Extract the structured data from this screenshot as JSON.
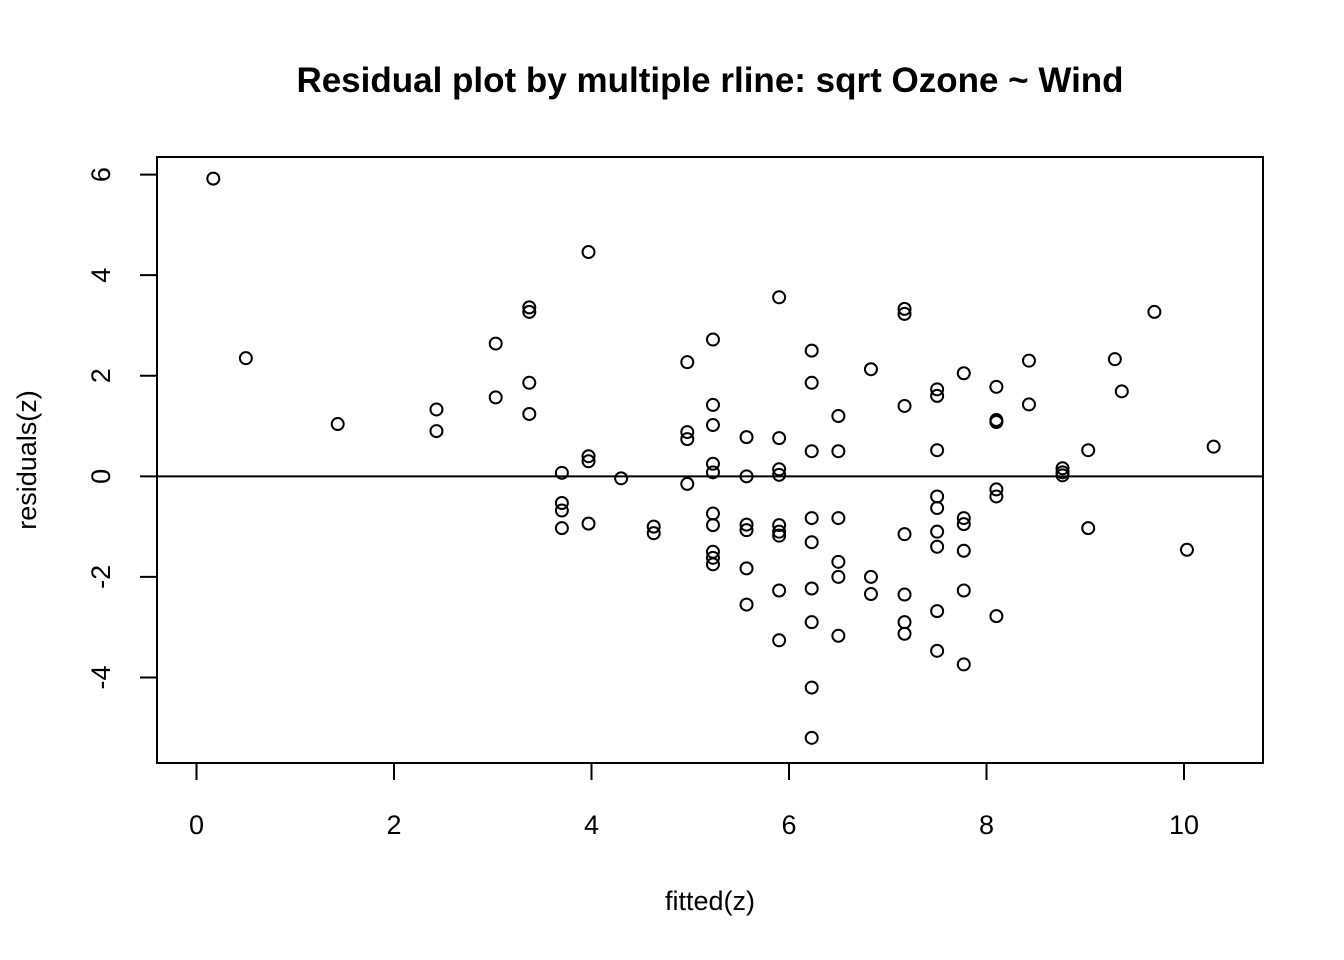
{
  "chart_data": {
    "type": "scatter",
    "title": "Residual plot by multiple rline: sqrt Ozone ~ Wind",
    "xlabel": "fitted(z)",
    "ylabel": "residuals(z)",
    "xlim": [
      -0.4,
      10.8
    ],
    "ylim": [
      -5.7,
      6.35
    ],
    "x_ticks": [
      0,
      2,
      4,
      6,
      8,
      10
    ],
    "x_tick_labels": [
      "0",
      "2",
      "4",
      "6",
      "8",
      "10"
    ],
    "y_ticks": [
      -4,
      -2,
      0,
      2,
      4,
      6
    ],
    "y_tick_labels": [
      "-4",
      "-2",
      "0",
      "2",
      "4",
      "6"
    ],
    "reference_line_y": 0,
    "grid": false,
    "marker": "open-circle",
    "points": [
      {
        "x": 0.17,
        "y": 5.92
      },
      {
        "x": 0.5,
        "y": 2.35
      },
      {
        "x": 1.43,
        "y": 1.04
      },
      {
        "x": 2.43,
        "y": 1.33
      },
      {
        "x": 2.43,
        "y": 0.9
      },
      {
        "x": 3.03,
        "y": 2.64
      },
      {
        "x": 3.03,
        "y": 1.57
      },
      {
        "x": 3.37,
        "y": 3.36
      },
      {
        "x": 3.37,
        "y": 3.27
      },
      {
        "x": 3.37,
        "y": 1.86
      },
      {
        "x": 3.37,
        "y": 1.24
      },
      {
        "x": 3.7,
        "y": 0.07
      },
      {
        "x": 3.7,
        "y": -0.53
      },
      {
        "x": 3.7,
        "y": -0.68
      },
      {
        "x": 3.7,
        "y": -1.03
      },
      {
        "x": 3.97,
        "y": 4.46
      },
      {
        "x": 3.97,
        "y": 0.4
      },
      {
        "x": 3.97,
        "y": 0.3
      },
      {
        "x": 3.97,
        "y": -0.94
      },
      {
        "x": 4.3,
        "y": -0.04
      },
      {
        "x": 4.63,
        "y": -1.0
      },
      {
        "x": 4.63,
        "y": -1.13
      },
      {
        "x": 4.97,
        "y": 2.27
      },
      {
        "x": 4.97,
        "y": 0.88
      },
      {
        "x": 4.97,
        "y": 0.74
      },
      {
        "x": 4.97,
        "y": -0.15
      },
      {
        "x": 5.23,
        "y": 2.72
      },
      {
        "x": 5.23,
        "y": 1.42
      },
      {
        "x": 5.23,
        "y": 1.02
      },
      {
        "x": 5.23,
        "y": 0.25
      },
      {
        "x": 5.23,
        "y": 0.08
      },
      {
        "x": 5.23,
        "y": -0.74
      },
      {
        "x": 5.23,
        "y": -0.97
      },
      {
        "x": 5.23,
        "y": -1.5
      },
      {
        "x": 5.23,
        "y": -1.62
      },
      {
        "x": 5.23,
        "y": -1.75
      },
      {
        "x": 5.57,
        "y": 0.78
      },
      {
        "x": 5.57,
        "y": 0.0
      },
      {
        "x": 5.57,
        "y": -0.96
      },
      {
        "x": 5.57,
        "y": -1.07
      },
      {
        "x": 5.57,
        "y": -1.83
      },
      {
        "x": 5.57,
        "y": -2.55
      },
      {
        "x": 5.9,
        "y": 3.56
      },
      {
        "x": 5.9,
        "y": 0.76
      },
      {
        "x": 5.9,
        "y": 0.14
      },
      {
        "x": 5.9,
        "y": 0.03
      },
      {
        "x": 5.9,
        "y": -0.97
      },
      {
        "x": 5.9,
        "y": -1.1
      },
      {
        "x": 5.9,
        "y": -1.18
      },
      {
        "x": 5.9,
        "y": -2.27
      },
      {
        "x": 5.9,
        "y": -3.26
      },
      {
        "x": 6.23,
        "y": 2.5
      },
      {
        "x": 6.23,
        "y": 1.86
      },
      {
        "x": 6.23,
        "y": 0.5
      },
      {
        "x": 6.23,
        "y": -0.83
      },
      {
        "x": 6.23,
        "y": -1.31
      },
      {
        "x": 6.23,
        "y": -2.23
      },
      {
        "x": 6.23,
        "y": -2.9
      },
      {
        "x": 6.23,
        "y": -4.2
      },
      {
        "x": 6.23,
        "y": -5.2
      },
      {
        "x": 6.5,
        "y": 1.2
      },
      {
        "x": 6.5,
        "y": 0.5
      },
      {
        "x": 6.5,
        "y": -0.83
      },
      {
        "x": 6.5,
        "y": -1.7
      },
      {
        "x": 6.5,
        "y": -2.0
      },
      {
        "x": 6.5,
        "y": -3.17
      },
      {
        "x": 6.83,
        "y": 2.13
      },
      {
        "x": 6.83,
        "y": -2.0
      },
      {
        "x": 6.83,
        "y": -2.34
      },
      {
        "x": 7.17,
        "y": 3.33
      },
      {
        "x": 7.17,
        "y": 3.23
      },
      {
        "x": 7.17,
        "y": 1.4
      },
      {
        "x": 7.17,
        "y": -1.15
      },
      {
        "x": 7.17,
        "y": -2.35
      },
      {
        "x": 7.17,
        "y": -2.9
      },
      {
        "x": 7.17,
        "y": -3.13
      },
      {
        "x": 7.5,
        "y": 1.73
      },
      {
        "x": 7.5,
        "y": 1.6
      },
      {
        "x": 7.5,
        "y": 0.52
      },
      {
        "x": 7.5,
        "y": -0.4
      },
      {
        "x": 7.5,
        "y": -0.63
      },
      {
        "x": 7.5,
        "y": -1.1
      },
      {
        "x": 7.5,
        "y": -1.4
      },
      {
        "x": 7.5,
        "y": -2.68
      },
      {
        "x": 7.5,
        "y": -3.47
      },
      {
        "x": 7.77,
        "y": 2.05
      },
      {
        "x": 7.77,
        "y": -0.83
      },
      {
        "x": 7.77,
        "y": -0.95
      },
      {
        "x": 7.77,
        "y": -1.48
      },
      {
        "x": 7.77,
        "y": -2.27
      },
      {
        "x": 7.77,
        "y": -3.74
      },
      {
        "x": 8.1,
        "y": 1.78
      },
      {
        "x": 8.1,
        "y": 1.12
      },
      {
        "x": 8.1,
        "y": 1.08
      },
      {
        "x": 8.1,
        "y": -0.26
      },
      {
        "x": 8.1,
        "y": -0.4
      },
      {
        "x": 8.1,
        "y": -2.78
      },
      {
        "x": 8.43,
        "y": 2.3
      },
      {
        "x": 8.43,
        "y": 1.43
      },
      {
        "x": 8.77,
        "y": 0.16
      },
      {
        "x": 8.77,
        "y": 0.08
      },
      {
        "x": 8.77,
        "y": 0.02
      },
      {
        "x": 9.03,
        "y": 0.52
      },
      {
        "x": 9.03,
        "y": -1.03
      },
      {
        "x": 9.3,
        "y": 2.33
      },
      {
        "x": 9.37,
        "y": 1.69
      },
      {
        "x": 9.7,
        "y": 3.27
      },
      {
        "x": 10.03,
        "y": -1.46
      },
      {
        "x": 10.3,
        "y": 0.59
      }
    ]
  }
}
